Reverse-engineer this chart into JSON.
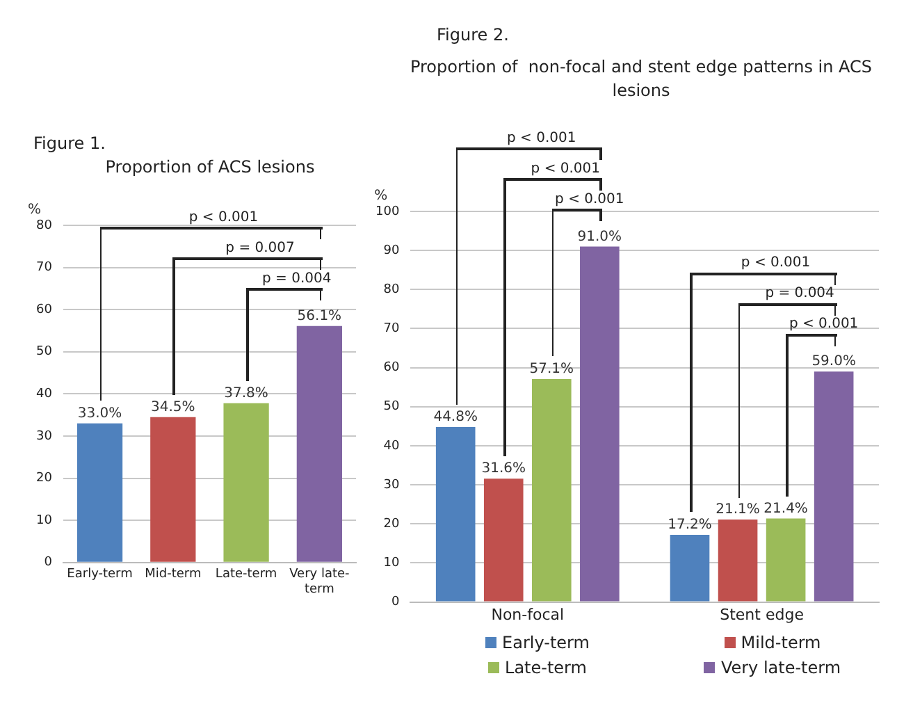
{
  "chart_data": [
    {
      "type": "bar",
      "title": "Proportion of ACS lesions",
      "ylabel": "%",
      "categories": [
        "Early-term",
        "Mid-term",
        "Late-term",
        "Very late-term"
      ],
      "values": [
        33.0,
        34.5,
        37.8,
        56.1
      ],
      "colors": [
        "#4f81bd",
        "#c0504d",
        "#9bbb59",
        "#8064a2"
      ],
      "value_labels": [
        "33.0%",
        "34.5%",
        "37.8%",
        "56.1%"
      ],
      "ylim": [
        0,
        80
      ],
      "yticks": [
        0,
        10,
        20,
        30,
        40,
        50,
        60,
        70,
        80
      ],
      "grid": "y",
      "annotations": [
        "Figure 1.",
        "p < 0.001",
        "p = 0.007",
        "p = 0.004"
      ]
    },
    {
      "type": "bar",
      "title": "Proportion of  non-focal and stent edge patterns in ACS lesions",
      "ylabel": "%",
      "categories": [
        "Non-focal",
        "Stent edge"
      ],
      "series": [
        {
          "name": "Early-term",
          "color": "#4f81bd",
          "values": [
            44.8,
            17.2
          ],
          "value_labels": [
            "44.8%",
            "17.2%"
          ]
        },
        {
          "name": "Mild-term",
          "color": "#c0504d",
          "values": [
            31.6,
            21.1
          ],
          "value_labels": [
            "31.6%",
            "21.1%"
          ]
        },
        {
          "name": "Late-term",
          "color": "#9bbb59",
          "values": [
            57.1,
            21.4
          ],
          "value_labels": [
            "57.1%",
            "21.4%"
          ]
        },
        {
          "name": "Very late-term",
          "color": "#8064a2",
          "values": [
            91.0,
            59.0
          ],
          "value_labels": [
            "91.0%",
            "59.0%"
          ]
        }
      ],
      "ylim": [
        0,
        100
      ],
      "yticks": [
        0,
        10,
        20,
        30,
        40,
        50,
        60,
        70,
        80,
        90,
        100
      ],
      "grid": "y",
      "legend": "bottom",
      "annotations": [
        "Figure 2.",
        "p < 0.001",
        "p < 0.001",
        "p < 0.001",
        "p < 0.001",
        "p = 0.004",
        "p < 0.001"
      ]
    }
  ]
}
